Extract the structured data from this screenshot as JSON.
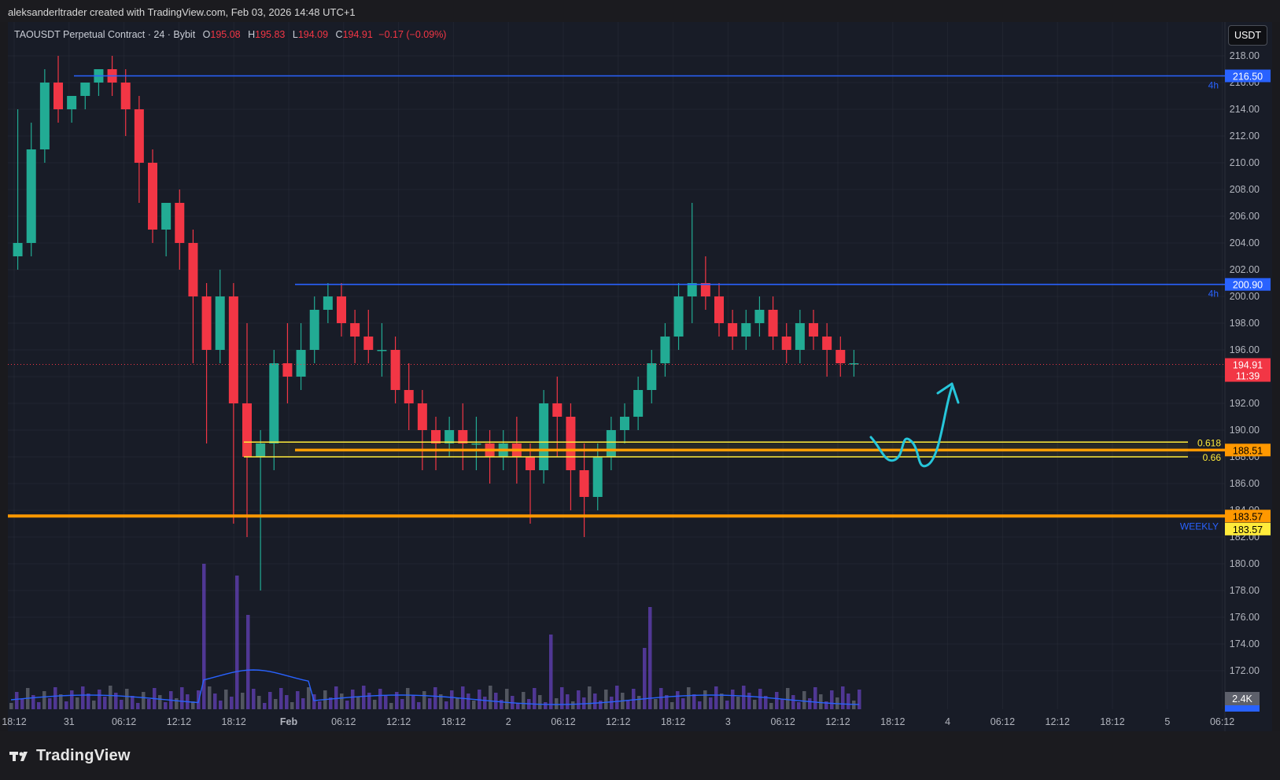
{
  "header": {
    "text": "aleksanderltrader created with TradingView.com, Feb 03, 2026 14:48 UTC+1"
  },
  "legend": {
    "symbol": "TAOUSDT Perpetual Contract · 24 · Bybit",
    "open_label": "O",
    "open": "195.08",
    "high_label": "H",
    "high": "195.83",
    "low_label": "L",
    "low": "194.09",
    "close_label": "C",
    "close": "194.91",
    "change": "−0.17 (−0.09%)"
  },
  "currency_button": "USDT",
  "footer": {
    "brand": "TradingView"
  },
  "colors": {
    "up": "#22ab94",
    "down": "#f23645",
    "background": "#181c27",
    "grid": "#2a2e39",
    "blue_line": "#2962ff",
    "orange": "#ff9800",
    "yellow": "#ffeb3b",
    "volume_up": "#5b3ca8",
    "volume_down": "#5d606b",
    "sma": "#2962ff",
    "arrow": "#26c6da"
  },
  "chart_data": {
    "type": "candlestick",
    "symbol": "TAOUSDT",
    "exchange": "Bybit",
    "interval": "24",
    "y_axis": {
      "min": 170,
      "max": 220,
      "ticks": [
        "218.00",
        "216.00",
        "214.00",
        "212.00",
        "210.00",
        "208.00",
        "206.00",
        "204.00",
        "202.00",
        "200.00",
        "198.00",
        "196.00",
        "194.00",
        "192.00",
        "190.00",
        "188.00",
        "186.00",
        "184.00",
        "182.00",
        "180.00",
        "178.00",
        "176.00",
        "174.00",
        "172.00"
      ]
    },
    "x_axis": {
      "ticks": [
        "18:12",
        "31",
        "06:12",
        "12:12",
        "18:12",
        "Feb",
        "06:12",
        "12:12",
        "18:12",
        "2",
        "06:12",
        "12:12",
        "18:12",
        "3",
        "06:12",
        "12:12",
        "18:12",
        "4",
        "06:12",
        "12:12",
        "18:12",
        "5",
        "06:12"
      ],
      "bold": [
        "Feb"
      ]
    },
    "horizontal_lines": [
      {
        "price": 216.5,
        "label": "216.50",
        "tag": "4h",
        "color": "#2962ff"
      },
      {
        "price": 200.9,
        "label": "200.90",
        "tag": "4h",
        "color": "#2962ff"
      },
      {
        "price": 183.57,
        "label": "183.57",
        "tag": "WEEKLY",
        "color": "#ff9800"
      },
      {
        "price": 188.51,
        "label": "188.51",
        "tag": "",
        "color": "#ff9800"
      }
    ],
    "fib_levels": [
      {
        "price": 189.1,
        "label": "0.618"
      },
      {
        "price": 188.0,
        "label": "0.66"
      }
    ],
    "current_price": {
      "value": "194.91",
      "countdown": "11:39",
      "price": 194.91
    },
    "price_badges": [
      {
        "text": "183.57",
        "price": 183.57,
        "color": "#ff9800",
        "text_color": "#000000"
      },
      {
        "text": "183.57",
        "price": 182.6,
        "color": "#ffeb3b",
        "text_color": "#000000"
      }
    ],
    "volume": {
      "last": "2.4K",
      "sma_last": "1.48K"
    },
    "candles": [
      [
        203,
        214,
        204,
        202
      ],
      [
        204,
        213,
        211,
        203
      ],
      [
        211,
        217,
        216,
        210
      ],
      [
        216,
        218,
        214,
        213
      ],
      [
        214,
        215,
        215,
        213
      ],
      [
        215,
        216,
        216,
        214
      ],
      [
        216,
        217,
        217,
        215
      ],
      [
        217,
        218,
        216,
        215
      ],
      [
        216,
        217,
        214,
        212
      ],
      [
        214,
        215,
        210,
        207
      ],
      [
        210,
        211,
        205,
        204
      ],
      [
        205,
        206,
        207,
        203
      ],
      [
        207,
        208,
        204,
        202
      ],
      [
        204,
        205,
        200,
        195
      ],
      [
        200,
        201,
        196,
        189
      ],
      [
        196,
        202,
        200,
        195
      ],
      [
        200,
        201,
        192,
        183
      ],
      [
        192,
        198,
        188,
        182
      ],
      [
        188,
        190,
        189,
        178
      ],
      [
        189,
        196,
        195,
        187
      ],
      [
        195,
        198,
        194,
        192
      ],
      [
        194,
        198,
        196,
        193
      ],
      [
        196,
        200,
        199,
        195
      ],
      [
        199,
        201,
        200,
        198
      ],
      [
        200,
        201,
        198,
        197
      ],
      [
        198,
        199,
        197,
        195
      ],
      [
        197,
        199,
        196,
        195
      ],
      [
        196,
        198,
        196,
        194
      ],
      [
        196,
        197,
        193,
        192
      ],
      [
        193,
        195,
        192,
        190
      ],
      [
        192,
        193,
        190,
        187
      ],
      [
        190,
        191,
        189,
        187
      ],
      [
        189,
        191,
        190,
        188
      ],
      [
        190,
        192,
        189,
        187
      ],
      [
        189,
        191,
        189,
        187
      ],
      [
        189,
        190,
        188,
        186
      ],
      [
        188,
        190,
        189,
        187
      ],
      [
        189,
        191,
        188,
        186
      ],
      [
        188,
        189,
        187,
        183
      ],
      [
        187,
        193,
        192,
        186
      ],
      [
        192,
        194,
        191,
        188
      ],
      [
        191,
        192,
        187,
        184
      ],
      [
        187,
        189,
        185,
        182
      ],
      [
        185,
        189,
        188,
        184
      ],
      [
        188,
        191,
        190,
        187
      ],
      [
        190,
        192,
        191,
        189
      ],
      [
        191,
        194,
        193,
        190
      ],
      [
        193,
        196,
        195,
        192
      ],
      [
        195,
        198,
        197,
        194
      ],
      [
        197,
        201,
        200,
        196
      ],
      [
        200,
        207,
        201,
        198
      ],
      [
        201,
        203,
        200,
        199
      ],
      [
        200,
        201,
        198,
        197
      ],
      [
        198,
        199,
        197,
        196
      ],
      [
        197,
        199,
        198,
        196
      ],
      [
        198,
        200,
        199,
        197
      ],
      [
        199,
        200,
        197,
        196
      ],
      [
        197,
        198,
        196,
        195
      ],
      [
        196,
        199,
        198,
        195
      ],
      [
        198,
        199,
        197,
        196
      ],
      [
        197,
        198,
        196,
        194
      ],
      [
        196,
        197,
        195,
        194
      ],
      [
        195,
        196,
        195,
        194
      ]
    ],
    "annotations": [
      {
        "type": "wave-arrow",
        "color": "#26c6da"
      }
    ]
  }
}
